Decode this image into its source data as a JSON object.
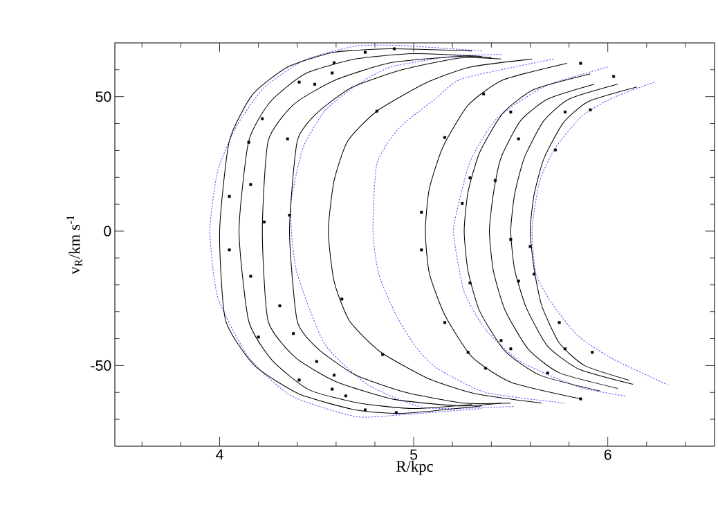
{
  "chart_data": {
    "type": "line",
    "xlabel": "R/kpc",
    "ylabel": "v$_{R}$/km s$^{-1}$",
    "xlim": [
      3.46,
      6.55
    ],
    "ylim": [
      -80,
      70
    ],
    "xticks": [
      {
        "value": 3.6,
        "label": null
      },
      {
        "value": 3.8,
        "label": null
      },
      4,
      {
        "value": 4.2,
        "label": null
      },
      {
        "value": 4.4,
        "label": null
      },
      {
        "value": 4.6,
        "label": null
      },
      {
        "value": 4.8,
        "label": null
      },
      5,
      {
        "value": 5.2,
        "label": null
      },
      {
        "value": 5.4,
        "label": null
      },
      {
        "value": 5.6,
        "label": null
      },
      {
        "value": 5.8,
        "label": null
      },
      6,
      {
        "value": 6.2,
        "label": null
      },
      {
        "value": 6.4,
        "label": null
      }
    ],
    "yticks": [
      {
        "value": -70,
        "label": null
      },
      {
        "value": -60,
        "label": null
      },
      -50,
      {
        "value": -40,
        "label": null
      },
      {
        "value": -30,
        "label": null
      },
      {
        "value": -20,
        "label": null
      },
      {
        "value": -10,
        "label": null
      },
      0,
      {
        "value": 10,
        "label": null
      },
      {
        "value": 20,
        "label": null
      },
      {
        "value": 30,
        "label": null
      },
      {
        "value": 40,
        "label": null
      },
      50,
      {
        "value": 60,
        "label": null
      }
    ],
    "series": [
      {
        "color": "#5a5aff",
        "line_style": "dotted",
        "marker": "none",
        "x": [
          5.35,
          4.94,
          4.7,
          4.44,
          4.23,
          4.09,
          3.99,
          3.95,
          3.99,
          4.15,
          4.37,
          4.7,
          4.94,
          5.35
        ],
        "values": [
          67,
          69,
          68.8,
          63.7,
          53.4,
          39.4,
          22.4,
          0,
          -24.5,
          -47,
          -61.3,
          -69,
          -68.3,
          -66
        ]
      },
      {
        "color": "#5a5aff",
        "line_style": "dotted",
        "marker": "none",
        "x": [
          5.45,
          5.2,
          4.88,
          4.7,
          4.54,
          4.43,
          4.37,
          4.37,
          4.4,
          4.54,
          4.76,
          5.06,
          5.52
        ],
        "values": [
          65.7,
          65,
          61,
          54,
          44.6,
          31,
          12,
          0,
          -16,
          -41.8,
          -57,
          -65.7,
          -65.2
        ]
      },
      {
        "color": "#5a5aff",
        "line_style": "dotted",
        "marker": "none",
        "x": [
          5.72,
          5.25,
          5.12,
          4.92,
          4.81,
          4.79,
          4.82,
          4.91,
          5.01,
          5.12,
          5.37,
          5.78
        ],
        "values": [
          64,
          56.7,
          49.7,
          38,
          25,
          0,
          -16,
          -31.4,
          -43,
          -51,
          -60,
          -64
        ]
      },
      {
        "color": "#5a5aff",
        "line_style": "dotted",
        "marker": "none",
        "x": [
          6.0,
          5.68,
          5.43,
          5.29,
          5.21,
          5.21,
          5.26,
          5.37,
          5.55,
          5.85,
          6.09
        ],
        "values": [
          61,
          54,
          42,
          25.8,
          3.4,
          -3.9,
          -22.7,
          -36.6,
          -48.5,
          -58,
          -61.3
        ]
      },
      {
        "color": "#5a5aff",
        "line_style": "dotted",
        "marker": "none",
        "x": [
          6.24,
          6.03,
          5.87,
          5.73,
          5.65,
          5.61,
          5.63,
          5.72,
          5.85,
          6.03,
          6.31
        ],
        "values": [
          55.4,
          49.7,
          43,
          31,
          18.8,
          0.8,
          -16,
          -27.8,
          -39.2,
          -47.7,
          -57.2
        ]
      },
      {
        "color": "#000000",
        "line_style": "solid",
        "marker": "none",
        "x": [
          5.3,
          4.88,
          4.59,
          4.35,
          4.17,
          4.05,
          4.0,
          4.03,
          4.18,
          4.41,
          4.7,
          4.94,
          5.35
        ],
        "values": [
          67,
          67.8,
          66.5,
          61,
          50.8,
          33.5,
          0,
          -33,
          -50,
          -60.6,
          -66.5,
          -67.8,
          -65
        ]
      },
      {
        "color": "#000000",
        "line_style": "solid",
        "marker": "none",
        "x": [
          5.35,
          5.0,
          4.7,
          4.44,
          4.26,
          4.15,
          4.1,
          4.15,
          4.27,
          4.46,
          4.72,
          5.0,
          5.3
        ],
        "values": [
          65,
          66,
          64,
          58.5,
          48,
          33.5,
          0,
          -33.5,
          -48,
          -59,
          -64,
          -66,
          -64.5
        ]
      },
      {
        "color": "#000000",
        "line_style": "solid",
        "marker": "none",
        "x": [
          5.4,
          5.24,
          4.88,
          4.59,
          4.38,
          4.25,
          4.22,
          4.25,
          4.39,
          4.6,
          4.9,
          5.24,
          5.45
        ],
        "values": [
          64.5,
          65,
          62.6,
          56,
          47,
          33.5,
          0,
          -33.5,
          -47,
          -56,
          -62.6,
          -65,
          -64
        ]
      },
      {
        "color": "#000000",
        "line_style": "solid",
        "marker": "none",
        "x": [
          5.45,
          5.24,
          4.94,
          4.68,
          4.5,
          4.4,
          4.36,
          4.4,
          4.51,
          4.7,
          4.96,
          5.26,
          5.5
        ],
        "values": [
          64,
          64.4,
          60,
          53.4,
          43.8,
          33.5,
          0,
          -33.5,
          -44,
          -53.5,
          -60,
          -64,
          -64
        ]
      },
      {
        "color": "#000000",
        "line_style": "solid",
        "marker": "none",
        "x": [
          5.61,
          5.29,
          5.06,
          4.81,
          4.66,
          4.59,
          4.56,
          4.59,
          4.67,
          4.83,
          5.08,
          5.32,
          5.66
        ],
        "values": [
          64,
          61,
          55,
          44.6,
          33.5,
          18.8,
          0,
          -18.8,
          -33.5,
          -45,
          -55,
          -60.5,
          -64
        ]
      },
      {
        "color": "#000000",
        "line_style": "solid",
        "marker": "none",
        "x": [
          5.79,
          5.46,
          5.28,
          5.15,
          5.08,
          5.06,
          5.08,
          5.16,
          5.3,
          5.5,
          5.86
        ],
        "values": [
          62.4,
          56.2,
          46.8,
          31.2,
          15.6,
          0,
          -15.6,
          -31.2,
          -46.8,
          -56.2,
          -62.4
        ]
      },
      {
        "color": "#000000",
        "line_style": "solid",
        "marker": "none",
        "x": [
          5.91,
          5.62,
          5.46,
          5.34,
          5.28,
          5.26,
          5.28,
          5.34,
          5.47,
          5.65,
          5.96
        ],
        "values": [
          58.5,
          52.7,
          43.9,
          29.3,
          14.6,
          0,
          -14.9,
          -29.8,
          -44.6,
          -53.6,
          -59.5
        ]
      },
      {
        "color": "#000000",
        "line_style": "solid",
        "marker": "none",
        "x": [
          5.93,
          5.69,
          5.55,
          5.45,
          5.41,
          5.39,
          5.41,
          5.47,
          5.59,
          5.75,
          6.05
        ],
        "values": [
          54.6,
          49.1,
          41,
          27.3,
          13.7,
          0,
          -14.6,
          -29.3,
          -43.9,
          -52.7,
          -58.5
        ]
      },
      {
        "color": "#000000",
        "line_style": "solid",
        "marker": "none",
        "x": [
          6.05,
          5.8,
          5.67,
          5.57,
          5.52,
          5.5,
          5.52,
          5.58,
          5.69,
          5.85,
          6.13
        ],
        "values": [
          54.6,
          49.1,
          41,
          27.3,
          13.7,
          0,
          -14.3,
          -28.5,
          -42.8,
          -51.3,
          -57
        ]
      },
      {
        "color": "#000000",
        "line_style": "solid",
        "marker": "none",
        "x": [
          6.15,
          5.9,
          5.77,
          5.67,
          5.62,
          5.6,
          5.62,
          5.66,
          5.75,
          5.88,
          6.11
        ],
        "values": [
          53.6,
          48.2,
          40.2,
          26.8,
          13.4,
          0,
          -13.9,
          -27.8,
          -41.6,
          -50,
          -55.5
        ]
      },
      {
        "type": "scatter",
        "color": "#000000",
        "marker": "square",
        "x": [
          4.05,
          4.15,
          4.22,
          4.41,
          4.59,
          4.75,
          4.9,
          4.16,
          4.36,
          4.23,
          4.49,
          4.58,
          4.35,
          4.81,
          5.16,
          5.04,
          5.25,
          5.36,
          5.5,
          5.78,
          5.91,
          5.73,
          5.42,
          5.29,
          5.86,
          6.03,
          5.54,
          4.05,
          4.16,
          4.31,
          4.38,
          4.5,
          4.59,
          4.65,
          4.75,
          4.91,
          4.58,
          4.41,
          4.2,
          4.63,
          4.84,
          5.04,
          5.16,
          5.29,
          5.5,
          5.6,
          5.62,
          5.54,
          5.75,
          5.92,
          5.78,
          5.69,
          5.86,
          5.37,
          5.5,
          5.45,
          5.28
        ],
        "values": [
          12.9,
          33,
          41.8,
          55.4,
          62.6,
          66.5,
          67.8,
          17.3,
          5.9,
          3.4,
          54.6,
          58.8,
          34.3,
          44.6,
          34.8,
          7,
          10.3,
          51,
          44.3,
          44.3,
          45.1,
          30.2,
          18.8,
          19.8,
          62.4,
          57.5,
          34.3,
          -7,
          -16.8,
          -27.8,
          -38.1,
          -48.5,
          -53.6,
          -61.3,
          -66.5,
          -67.5,
          -58.8,
          -55.4,
          -39.4,
          -25.3,
          -45.9,
          -7,
          -34,
          -19.3,
          -3.1,
          -5.7,
          -16,
          -18.6,
          -34,
          -45.1,
          -43.8,
          -52.8,
          -62.4,
          -51,
          -43.8,
          -40.7,
          -45.1
        ]
      }
    ]
  }
}
